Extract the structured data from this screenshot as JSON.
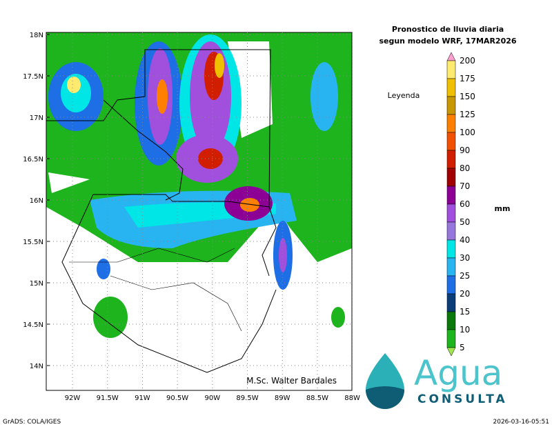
{
  "header": {
    "title_line1": "Pronostico de lluvia diaria",
    "title_line2": "segun modelo WRF,  17MAR2026"
  },
  "legend": {
    "title": "Leyenda",
    "unit": "mm",
    "levels": [
      "200",
      "175",
      "150",
      "125",
      "100",
      "90",
      "80",
      "70",
      "60",
      "50",
      "40",
      "30",
      "25",
      "20",
      "15",
      "10",
      "5"
    ]
  },
  "axes": {
    "lat_labels": [
      "18N",
      "17.5N",
      "17N",
      "16.5N",
      "16N",
      "15.5N",
      "15N",
      "14.5N",
      "14N"
    ],
    "lon_labels": [
      "92W",
      "91.5W",
      "91W",
      "90.5W",
      "90W",
      "89.5W",
      "89W",
      "88.5W",
      "88W"
    ]
  },
  "credit": "M.Sc. Walter Bardales",
  "footer": {
    "left": "GrADS: COLA/IGES",
    "right": "2026-03-16-05:51"
  },
  "logo": {
    "word": "Agua",
    "subword": "CONSULTA"
  }
}
